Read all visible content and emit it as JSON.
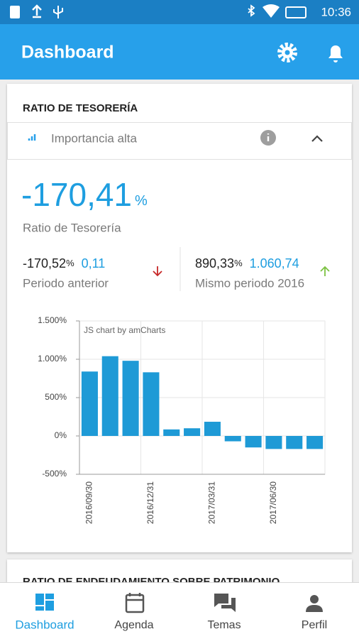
{
  "status_bar": {
    "time": "10:36"
  },
  "app_bar": {
    "title": "Dashboard"
  },
  "card": {
    "title": "RATIO DE TESORERÍA",
    "importance": "Importancia alta",
    "main_value": "-170,41",
    "main_unit": "%",
    "main_label": "Ratio de Tesorería",
    "previous": {
      "value": "-170,52",
      "unit": "%",
      "change": "0,11",
      "label": "Periodo anterior"
    },
    "same_period": {
      "value": "890,33",
      "unit": "%",
      "change": "1.060,74",
      "label": "Mismo periodo 2016"
    }
  },
  "chart_data": {
    "type": "bar",
    "watermark": "JS chart by amCharts",
    "categories": [
      "2016/09/30",
      null,
      null,
      "2016/12/31",
      null,
      null,
      "2017/03/31",
      null,
      null,
      "2017/06/30",
      null,
      null
    ],
    "values": [
      840,
      1040,
      980,
      830,
      85,
      100,
      185,
      -70,
      -150,
      -170,
      -170,
      -170
    ],
    "color": "#1e9ad6",
    "ylim": [
      -500,
      1500
    ],
    "yticks": [
      {
        "value": 1500,
        "label": "1.500%"
      },
      {
        "value": 1000,
        "label": "1.000%"
      },
      {
        "value": 500,
        "label": "500%"
      },
      {
        "value": 0,
        "label": "0%"
      },
      {
        "value": -500,
        "label": "-500%"
      }
    ],
    "grid": true
  },
  "next_card": {
    "title": "RATIO DE ENDEUDAMIENTO SOBRE PATRIMONIO"
  },
  "bottom_nav": [
    "Dashboard",
    "Agenda",
    "Temas",
    "Perfil"
  ]
}
